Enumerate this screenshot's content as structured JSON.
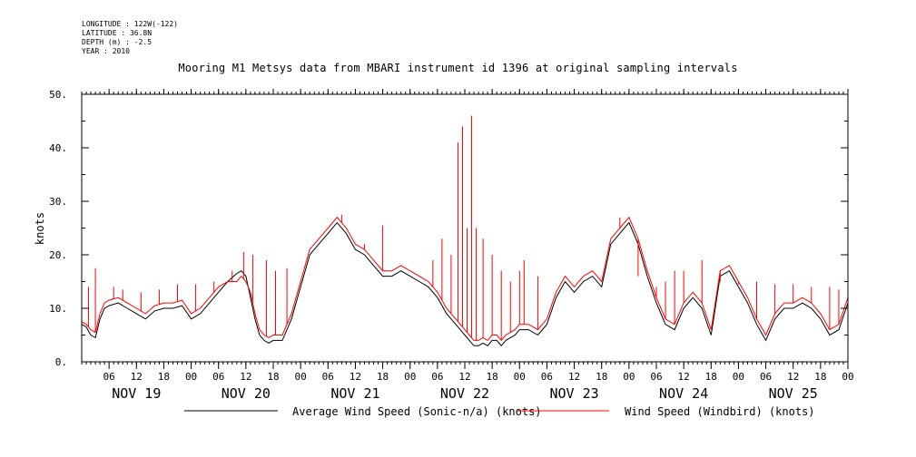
{
  "meta": {
    "longitude": "LONGITUDE : 122W(-122)",
    "latitude": "LATITUDE : 36.8N",
    "depth": "DEPTH (m) : -2.5",
    "year": "YEAR : 2010"
  },
  "title": "Mooring M1 Metsys data from MBARI instrument id 1396 at original sampling intervals",
  "chart_data": {
    "type": "line",
    "title": "Mooring M1 Metsys data from MBARI instrument id 1396 at original sampling intervals",
    "xlabel": "",
    "ylabel": "knots",
    "xlim_hours": [
      0,
      168
    ],
    "ylim": [
      0,
      50
    ],
    "yticks": [
      0,
      10,
      20,
      30,
      40,
      50
    ],
    "ytick_labels": [
      "0.",
      "10.",
      "20.",
      "30.",
      "40.",
      "50."
    ],
    "xtick_hours": [
      6,
      12,
      18,
      24,
      30,
      36,
      42,
      48,
      54,
      60,
      66,
      72,
      78,
      84,
      90,
      96,
      102,
      108,
      114,
      120,
      126,
      132,
      138,
      144,
      150,
      156,
      162,
      168
    ],
    "xtick_labels": [
      "06",
      "12",
      "18",
      "00",
      "06",
      "12",
      "18",
      "00",
      "06",
      "12",
      "18",
      "00",
      "06",
      "12",
      "18",
      "00",
      "06",
      "12",
      "18",
      "00",
      "06",
      "12",
      "18",
      "00",
      "06",
      "12",
      "18",
      "00"
    ],
    "day_labels": [
      "NOV 19",
      "NOV 20",
      "NOV 21",
      "NOV 22",
      "NOV 23",
      "NOV 24",
      "NOV 25"
    ],
    "day_label_hours": [
      12,
      36,
      60,
      84,
      108,
      132,
      156
    ],
    "grid": false,
    "legend_position": "bottom",
    "series": [
      {
        "name": "Average Wind Speed (Sonic-n/a) (knots)",
        "color": "#000000",
        "x": [
          0,
          1,
          2,
          3,
          4,
          5,
          6,
          8,
          10,
          12,
          14,
          16,
          18,
          20,
          22,
          24,
          26,
          28,
          30,
          32,
          34,
          35,
          36,
          37,
          38,
          39,
          40,
          41,
          42,
          43,
          44,
          46,
          48,
          50,
          52,
          54,
          56,
          58,
          60,
          62,
          64,
          66,
          68,
          70,
          72,
          74,
          76,
          78,
          80,
          82,
          83,
          84,
          85,
          86,
          87,
          88,
          89,
          90,
          91,
          92,
          93,
          94,
          95,
          96,
          98,
          100,
          102,
          104,
          106,
          108,
          110,
          112,
          114,
          116,
          118,
          120,
          122,
          124,
          126,
          128,
          130,
          132,
          134,
          136,
          138,
          140,
          142,
          144,
          146,
          148,
          150,
          152,
          154,
          156,
          158,
          160,
          162,
          164,
          166,
          168
        ],
        "values": [
          7,
          6.5,
          5,
          4.5,
          8,
          10,
          10.5,
          11,
          10,
          9,
          8,
          9.5,
          10,
          10,
          10.5,
          8,
          9,
          11,
          13,
          15,
          16.5,
          17,
          16,
          12,
          8,
          5,
          4,
          3.5,
          4,
          4,
          4,
          8,
          14,
          20,
          22,
          24,
          26,
          24,
          21,
          20,
          18,
          16,
          16,
          17,
          16,
          15,
          14,
          12,
          9,
          7,
          6,
          5,
          4,
          3,
          3,
          3.5,
          3,
          4,
          4,
          3,
          4,
          4.5,
          5,
          6,
          6,
          5,
          7,
          12,
          15,
          13,
          15,
          16,
          14,
          22,
          24,
          26,
          22,
          16,
          11,
          7,
          6,
          10,
          12,
          10,
          5,
          16,
          17,
          14,
          11,
          7,
          4,
          8,
          10,
          10,
          11,
          10,
          8,
          5,
          6,
          11
        ]
      },
      {
        "name": "Wind Speed (Windbird) (knots)",
        "color": "#ff0000",
        "x": [
          0,
          1,
          2,
          3,
          4,
          5,
          6,
          8,
          10,
          12,
          14,
          16,
          18,
          20,
          22,
          24,
          26,
          28,
          30,
          32,
          34,
          35,
          36,
          37,
          38,
          39,
          40,
          41,
          42,
          43,
          44,
          46,
          48,
          50,
          52,
          54,
          56,
          58,
          60,
          62,
          64,
          66,
          68,
          70,
          72,
          74,
          76,
          78,
          80,
          82,
          83,
          84,
          85,
          86,
          87,
          88,
          89,
          90,
          91,
          92,
          93,
          94,
          95,
          96,
          98,
          100,
          102,
          104,
          106,
          108,
          110,
          112,
          114,
          116,
          118,
          120,
          122,
          124,
          126,
          128,
          130,
          132,
          134,
          136,
          138,
          140,
          142,
          144,
          146,
          148,
          150,
          152,
          154,
          156,
          158,
          160,
          162,
          164,
          166,
          168
        ],
        "values": [
          7.5,
          7,
          6,
          5.5,
          9,
          11,
          11.5,
          12,
          11,
          10,
          9,
          10.5,
          11,
          11,
          11.5,
          9,
          10,
          12,
          14,
          15,
          15,
          16,
          15,
          13,
          9,
          6,
          5,
          4.5,
          5,
          5,
          5,
          9,
          15,
          21,
          23,
          25,
          27,
          25,
          22,
          21,
          19,
          17,
          17,
          18,
          17,
          16,
          15,
          13,
          10,
          8,
          7,
          6,
          5,
          4,
          4,
          4.5,
          4,
          5,
          5,
          4,
          5,
          5.5,
          6,
          7,
          7,
          6,
          8,
          13,
          16,
          14,
          16,
          17,
          15,
          23,
          25,
          27,
          23,
          17,
          12,
          8,
          7,
          11,
          13,
          11,
          6,
          17,
          18,
          15,
          12,
          8,
          5,
          9,
          11,
          11,
          12,
          11,
          9,
          6,
          7,
          12
        ],
        "spikes": [
          {
            "x": 1.5,
            "value": 14
          },
          {
            "x": 3,
            "value": 17.5
          },
          {
            "x": 7,
            "value": 14
          },
          {
            "x": 9,
            "value": 13.5
          },
          {
            "x": 13,
            "value": 13
          },
          {
            "x": 17,
            "value": 13.5
          },
          {
            "x": 21,
            "value": 14.5
          },
          {
            "x": 25,
            "value": 14.5
          },
          {
            "x": 29,
            "value": 15
          },
          {
            "x": 33,
            "value": 17
          },
          {
            "x": 35.5,
            "value": 20.5
          },
          {
            "x": 37.5,
            "value": 20
          },
          {
            "x": 40.5,
            "value": 19
          },
          {
            "x": 42.5,
            "value": 17
          },
          {
            "x": 45,
            "value": 17.5
          },
          {
            "x": 57,
            "value": 27.5
          },
          {
            "x": 62,
            "value": 22
          },
          {
            "x": 66,
            "value": 25.5
          },
          {
            "x": 77,
            "value": 19
          },
          {
            "x": 79,
            "value": 23
          },
          {
            "x": 81,
            "value": 20
          },
          {
            "x": 82.5,
            "value": 41
          },
          {
            "x": 83.5,
            "value": 44
          },
          {
            "x": 84.5,
            "value": 25
          },
          {
            "x": 85.5,
            "value": 46
          },
          {
            "x": 86.5,
            "value": 25
          },
          {
            "x": 88,
            "value": 23
          },
          {
            "x": 90,
            "value": 20
          },
          {
            "x": 92,
            "value": 17
          },
          {
            "x": 94,
            "value": 15
          },
          {
            "x": 96,
            "value": 17
          },
          {
            "x": 97,
            "value": 19
          },
          {
            "x": 100,
            "value": 16
          },
          {
            "x": 118,
            "value": 27
          },
          {
            "x": 122,
            "value": 16
          },
          {
            "x": 126,
            "value": 14
          },
          {
            "x": 128,
            "value": 15
          },
          {
            "x": 130,
            "value": 17
          },
          {
            "x": 132,
            "value": 17
          },
          {
            "x": 136,
            "value": 19
          },
          {
            "x": 140,
            "value": 15
          },
          {
            "x": 144,
            "value": 14.5
          },
          {
            "x": 148,
            "value": 15
          },
          {
            "x": 152,
            "value": 14.5
          },
          {
            "x": 156,
            "value": 14.5
          },
          {
            "x": 160,
            "value": 14
          },
          {
            "x": 164,
            "value": 14
          },
          {
            "x": 166,
            "value": 13.5
          }
        ]
      }
    ]
  }
}
